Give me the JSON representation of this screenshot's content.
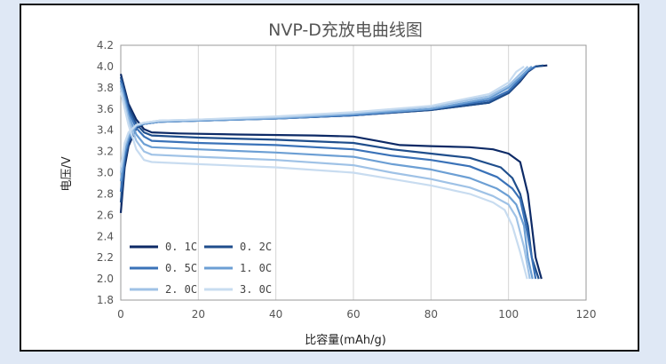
{
  "chart_data": {
    "type": "line",
    "title": "NVP-D充放电曲线图",
    "xlabel": "比容量(mAh/g)",
    "ylabel": "电压/V",
    "xlim": [
      0,
      120
    ],
    "ylim": [
      1.8,
      4.2
    ],
    "x_ticks": [
      "0",
      "20",
      "40",
      "60",
      "80",
      "100",
      "120"
    ],
    "y_ticks": [
      "1.8",
      "2.0",
      "2.2",
      "2.4",
      "2.6",
      "2.8",
      "3.0",
      "3.2",
      "3.4",
      "3.6",
      "3.8",
      "4.0",
      "4.2"
    ],
    "grid": "vertical",
    "legend_position": "bottom-left",
    "series": [
      {
        "name": "0. 1C",
        "color": "#0d2a66",
        "charge": [
          [
            0,
            2.62
          ],
          [
            1,
            3.05
          ],
          [
            2,
            3.25
          ],
          [
            4,
            3.42
          ],
          [
            6,
            3.46
          ],
          [
            10,
            3.48
          ],
          [
            20,
            3.49
          ],
          [
            40,
            3.51
          ],
          [
            60,
            3.54
          ],
          [
            80,
            3.59
          ],
          [
            95,
            3.66
          ],
          [
            100,
            3.75
          ],
          [
            103,
            3.86
          ],
          [
            105,
            3.95
          ],
          [
            107,
            4.0
          ],
          [
            110,
            4.01
          ]
        ],
        "discharge": [
          [
            0,
            3.93
          ],
          [
            2,
            3.65
          ],
          [
            4,
            3.5
          ],
          [
            6,
            3.41
          ],
          [
            8,
            3.38
          ],
          [
            15,
            3.37
          ],
          [
            30,
            3.36
          ],
          [
            50,
            3.35
          ],
          [
            60,
            3.34
          ],
          [
            66,
            3.3
          ],
          [
            72,
            3.26
          ],
          [
            80,
            3.25
          ],
          [
            90,
            3.24
          ],
          [
            96,
            3.22
          ],
          [
            100,
            3.18
          ],
          [
            103,
            3.1
          ],
          [
            105,
            2.8
          ],
          [
            106,
            2.5
          ],
          [
            107,
            2.2
          ],
          [
            108.5,
            2.0
          ]
        ]
      },
      {
        "name": "0. 2C",
        "color": "#1f4e8c",
        "charge": [
          [
            0,
            2.72
          ],
          [
            1,
            3.1
          ],
          [
            2,
            3.28
          ],
          [
            4,
            3.43
          ],
          [
            6,
            3.46
          ],
          [
            10,
            3.48
          ],
          [
            20,
            3.49
          ],
          [
            40,
            3.51
          ],
          [
            60,
            3.54
          ],
          [
            80,
            3.59
          ],
          [
            95,
            3.66
          ],
          [
            100,
            3.75
          ],
          [
            103,
            3.87
          ],
          [
            105,
            3.96
          ],
          [
            107,
            4.0
          ],
          [
            109,
            4.01
          ]
        ],
        "discharge": [
          [
            0,
            3.9
          ],
          [
            2,
            3.62
          ],
          [
            4,
            3.46
          ],
          [
            6,
            3.38
          ],
          [
            8,
            3.35
          ],
          [
            20,
            3.33
          ],
          [
            40,
            3.31
          ],
          [
            60,
            3.28
          ],
          [
            70,
            3.22
          ],
          [
            80,
            3.18
          ],
          [
            90,
            3.14
          ],
          [
            98,
            3.05
          ],
          [
            101,
            2.95
          ],
          [
            103,
            2.8
          ],
          [
            105,
            2.5
          ],
          [
            106,
            2.2
          ],
          [
            107.8,
            2.0
          ]
        ]
      },
      {
        "name": "0. 5C",
        "color": "#3a72b8",
        "charge": [
          [
            0,
            2.82
          ],
          [
            1,
            3.15
          ],
          [
            2,
            3.3
          ],
          [
            4,
            3.44
          ],
          [
            6,
            3.46
          ],
          [
            10,
            3.48
          ],
          [
            20,
            3.49
          ],
          [
            40,
            3.51
          ],
          [
            60,
            3.54
          ],
          [
            80,
            3.6
          ],
          [
            95,
            3.68
          ],
          [
            100,
            3.77
          ],
          [
            103,
            3.88
          ],
          [
            105,
            3.96
          ],
          [
            107,
            4.0
          ]
        ],
        "discharge": [
          [
            0,
            3.87
          ],
          [
            2,
            3.58
          ],
          [
            4,
            3.42
          ],
          [
            6,
            3.34
          ],
          [
            8,
            3.3
          ],
          [
            20,
            3.28
          ],
          [
            40,
            3.26
          ],
          [
            60,
            3.22
          ],
          [
            70,
            3.16
          ],
          [
            80,
            3.12
          ],
          [
            90,
            3.06
          ],
          [
            97,
            2.96
          ],
          [
            101,
            2.85
          ],
          [
            103,
            2.75
          ],
          [
            104.5,
            2.5
          ],
          [
            106,
            2.2
          ],
          [
            107,
            2.0
          ]
        ]
      },
      {
        "name": "1. 0C",
        "color": "#6c9fd4",
        "charge": [
          [
            0,
            2.92
          ],
          [
            1,
            3.2
          ],
          [
            2,
            3.33
          ],
          [
            4,
            3.44
          ],
          [
            6,
            3.46
          ],
          [
            10,
            3.48
          ],
          [
            20,
            3.49
          ],
          [
            40,
            3.51
          ],
          [
            60,
            3.55
          ],
          [
            80,
            3.6
          ],
          [
            95,
            3.7
          ],
          [
            100,
            3.8
          ],
          [
            103,
            3.9
          ],
          [
            105,
            3.97
          ],
          [
            106,
            4.0
          ]
        ],
        "discharge": [
          [
            0,
            3.84
          ],
          [
            2,
            3.54
          ],
          [
            4,
            3.36
          ],
          [
            6,
            3.27
          ],
          [
            8,
            3.24
          ],
          [
            20,
            3.22
          ],
          [
            40,
            3.19
          ],
          [
            60,
            3.15
          ],
          [
            70,
            3.08
          ],
          [
            80,
            3.03
          ],
          [
            90,
            2.95
          ],
          [
            97,
            2.85
          ],
          [
            100,
            2.78
          ],
          [
            102,
            2.7
          ],
          [
            104,
            2.5
          ],
          [
            105,
            2.2
          ],
          [
            106.2,
            2.0
          ]
        ]
      },
      {
        "name": "2. 0C",
        "color": "#9fc2e6",
        "charge": [
          [
            0,
            3.0
          ],
          [
            1,
            3.25
          ],
          [
            2,
            3.36
          ],
          [
            4,
            3.45
          ],
          [
            6,
            3.47
          ],
          [
            10,
            3.49
          ],
          [
            20,
            3.5
          ],
          [
            40,
            3.52
          ],
          [
            60,
            3.56
          ],
          [
            80,
            3.62
          ],
          [
            95,
            3.72
          ],
          [
            100,
            3.82
          ],
          [
            103,
            3.93
          ],
          [
            105,
            4.0
          ]
        ],
        "discharge": [
          [
            0,
            3.8
          ],
          [
            2,
            3.5
          ],
          [
            4,
            3.3
          ],
          [
            6,
            3.2
          ],
          [
            8,
            3.17
          ],
          [
            20,
            3.15
          ],
          [
            40,
            3.12
          ],
          [
            60,
            3.07
          ],
          [
            70,
            3.0
          ],
          [
            80,
            2.94
          ],
          [
            90,
            2.86
          ],
          [
            96,
            2.78
          ],
          [
            100,
            2.7
          ],
          [
            102,
            2.58
          ],
          [
            104,
            2.3
          ],
          [
            105.5,
            2.0
          ]
        ]
      },
      {
        "name": "3. 0C",
        "color": "#c8dcf0",
        "charge": [
          [
            0,
            3.05
          ],
          [
            1,
            3.28
          ],
          [
            2,
            3.38
          ],
          [
            4,
            3.45
          ],
          [
            6,
            3.47
          ],
          [
            10,
            3.49
          ],
          [
            20,
            3.5
          ],
          [
            40,
            3.53
          ],
          [
            60,
            3.57
          ],
          [
            80,
            3.63
          ],
          [
            95,
            3.74
          ],
          [
            100,
            3.85
          ],
          [
            102,
            3.95
          ],
          [
            104,
            4.0
          ]
        ],
        "discharge": [
          [
            0,
            3.76
          ],
          [
            2,
            3.45
          ],
          [
            4,
            3.22
          ],
          [
            6,
            3.12
          ],
          [
            8,
            3.1
          ],
          [
            20,
            3.08
          ],
          [
            40,
            3.05
          ],
          [
            60,
            3.0
          ],
          [
            70,
            2.94
          ],
          [
            80,
            2.88
          ],
          [
            90,
            2.8
          ],
          [
            96,
            2.72
          ],
          [
            99,
            2.65
          ],
          [
            101,
            2.5
          ],
          [
            103,
            2.25
          ],
          [
            104.8,
            2.0
          ]
        ]
      }
    ]
  }
}
